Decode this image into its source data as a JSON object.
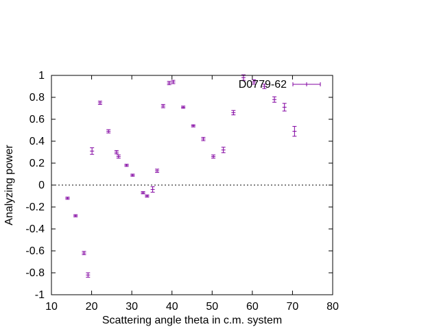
{
  "chart_data": {
    "type": "scatter",
    "title": "",
    "xlabel": "Scattering angle theta in c.m. system",
    "ylabel": "Analyzing power",
    "xlim": [
      10,
      80
    ],
    "ylim": [
      -1,
      1
    ],
    "xticks": [
      "10",
      "20",
      "30",
      "40",
      "50",
      "60",
      "70",
      "80"
    ],
    "yticks": [
      "-1",
      "-0.8",
      "-0.6",
      "-0.4",
      "-0.2",
      "0",
      "0.2",
      "0.4",
      "0.6",
      "0.8",
      "1"
    ],
    "grid": false,
    "zero_line": true,
    "legend_position": "top-right",
    "series": [
      {
        "name": "D0779-62",
        "color": "#8000a0",
        "errorbars": "y",
        "points": [
          {
            "x": 14.0,
            "y": -0.12,
            "err": 0.01
          },
          {
            "x": 16.0,
            "y": -0.28,
            "err": 0.01
          },
          {
            "x": 18.1,
            "y": -0.62,
            "err": 0.015
          },
          {
            "x": 19.1,
            "y": -0.82,
            "err": 0.02
          },
          {
            "x": 20.1,
            "y": 0.31,
            "err": 0.03
          },
          {
            "x": 22.1,
            "y": 0.75,
            "err": 0.015
          },
          {
            "x": 24.2,
            "y": 0.49,
            "err": 0.015
          },
          {
            "x": 26.2,
            "y": 0.3,
            "err": 0.015
          },
          {
            "x": 26.7,
            "y": 0.26,
            "err": 0.015
          },
          {
            "x": 28.7,
            "y": 0.18,
            "err": 0.01
          },
          {
            "x": 30.2,
            "y": 0.09,
            "err": 0.01
          },
          {
            "x": 32.8,
            "y": -0.07,
            "err": 0.01
          },
          {
            "x": 33.8,
            "y": -0.1,
            "err": 0.01
          },
          {
            "x": 35.2,
            "y": -0.04,
            "err": 0.025
          },
          {
            "x": 36.3,
            "y": 0.13,
            "err": 0.015
          },
          {
            "x": 37.8,
            "y": 0.72,
            "err": 0.015
          },
          {
            "x": 39.3,
            "y": 0.93,
            "err": 0.015
          },
          {
            "x": 40.3,
            "y": 0.94,
            "err": 0.015
          },
          {
            "x": 42.8,
            "y": 0.71,
            "err": 0.01
          },
          {
            "x": 45.3,
            "y": 0.54,
            "err": 0.01
          },
          {
            "x": 47.8,
            "y": 0.42,
            "err": 0.015
          },
          {
            "x": 50.3,
            "y": 0.26,
            "err": 0.015
          },
          {
            "x": 52.8,
            "y": 0.32,
            "err": 0.025
          },
          {
            "x": 55.3,
            "y": 0.66,
            "err": 0.02
          },
          {
            "x": 57.8,
            "y": 0.98,
            "err": 0.025
          },
          {
            "x": 60.4,
            "y": 0.94,
            "err": 0.02
          },
          {
            "x": 63.0,
            "y": 0.9,
            "err": 0.02
          },
          {
            "x": 65.5,
            "y": 0.78,
            "err": 0.025
          },
          {
            "x": 68.0,
            "y": 0.71,
            "err": 0.035
          },
          {
            "x": 70.5,
            "y": 0.49,
            "err": 0.045
          }
        ]
      }
    ]
  }
}
